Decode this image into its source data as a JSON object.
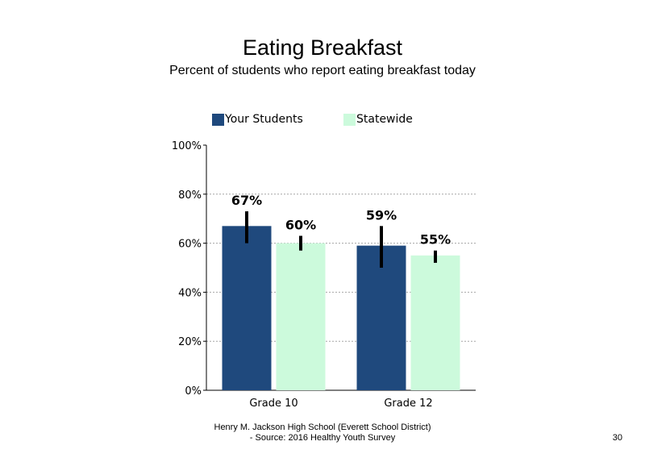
{
  "chart_data": {
    "type": "bar",
    "title": "Eating Breakfast",
    "subtitle": "Percent of students who report eating breakfast today",
    "categories": [
      "Grade 10",
      "Grade 12"
    ],
    "series": [
      {
        "name": "Your Students",
        "color": "#1f497d",
        "values": [
          67,
          59
        ],
        "data_labels": [
          "67%",
          "59%"
        ],
        "error_low": [
          60,
          50
        ],
        "error_high": [
          73,
          67
        ]
      },
      {
        "name": "Statewide",
        "color": "#ccfadc",
        "values": [
          60,
          55
        ],
        "data_labels": [
          "60%",
          "55%"
        ],
        "error_low": [
          57,
          52
        ],
        "error_high": [
          63,
          57
        ]
      }
    ],
    "ylim": [
      0,
      100
    ],
    "yticks": [
      0,
      20,
      40,
      60,
      80,
      100
    ],
    "ytick_labels": [
      "0%",
      "20%",
      "40%",
      "60%",
      "80%",
      "100%"
    ],
    "gridlines": "dotted",
    "legend_position": "top"
  },
  "footer": {
    "line1": "Henry M. Jackson High School (Everett School District)",
    "line2": "- Source: 2016 Healthy Youth Survey"
  },
  "page_number": "30"
}
